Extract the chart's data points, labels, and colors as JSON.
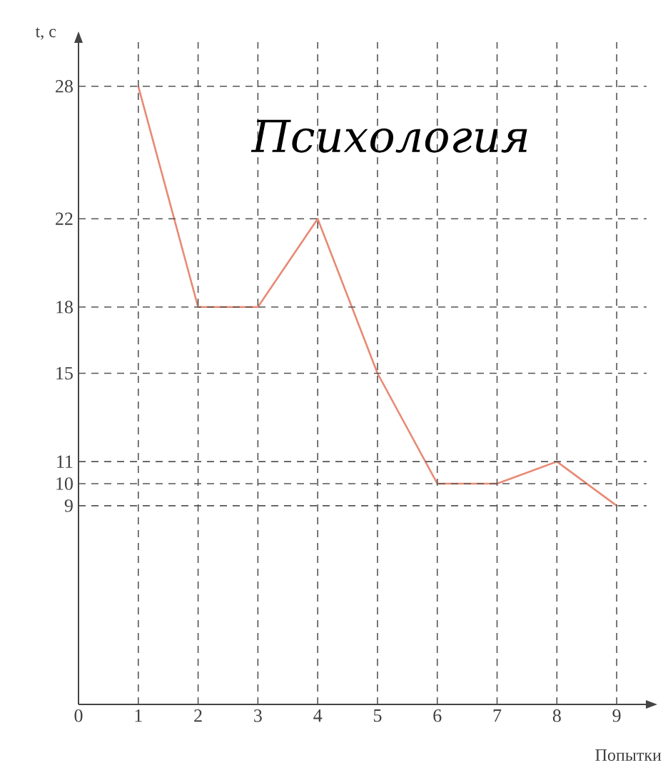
{
  "chart_data": {
    "type": "line",
    "title": "Психология",
    "xlabel": "Попытки",
    "ylabel": "t, с",
    "x": [
      1,
      2,
      3,
      4,
      5,
      6,
      7,
      8,
      9
    ],
    "series": [
      {
        "color": "#e88a74",
        "values": [
          28,
          18,
          18,
          22,
          15,
          10,
          10,
          11,
          9
        ]
      }
    ],
    "xlim": [
      0,
      9.5
    ],
    "ylim": [
      0,
      30
    ],
    "xticks": [
      0,
      1,
      2,
      3,
      4,
      5,
      6,
      7,
      8,
      9
    ],
    "yticks": [
      9,
      10,
      11,
      15,
      18,
      22,
      28
    ],
    "grid": true
  }
}
